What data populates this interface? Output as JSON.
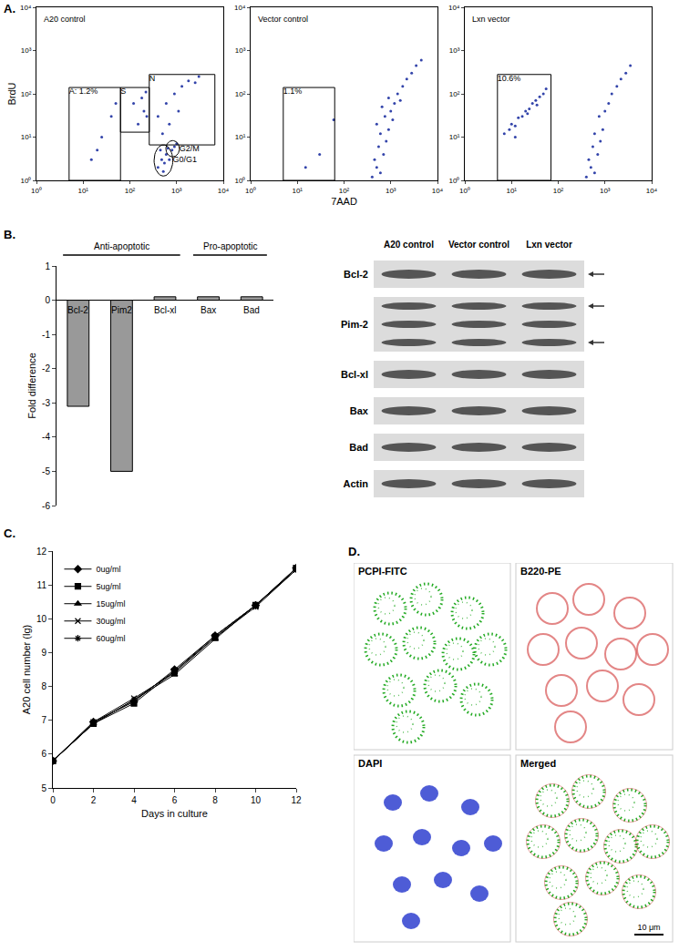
{
  "panel_labels": [
    "A.",
    "B.",
    "C.",
    "D."
  ],
  "chart_data": [
    {
      "type": "scatter",
      "title": "A20 control",
      "color": "#3344aa",
      "log": true,
      "xlim": [
        1,
        10000
      ],
      "ylim": [
        1,
        10000
      ],
      "xticks": [
        {
          "value": 1,
          "label": "10⁰"
        },
        {
          "value": 10,
          "label": "10¹"
        },
        {
          "value": 100,
          "label": "10²"
        },
        {
          "value": 1000,
          "label": "10³"
        },
        {
          "value": 10000,
          "label": "10⁴"
        }
      ],
      "yticks": [
        {
          "value": 1,
          "label": "10⁰"
        },
        {
          "value": 10,
          "label": "10¹"
        },
        {
          "value": 100,
          "label": "10²"
        },
        {
          "value": 1000,
          "label": "10³"
        },
        {
          "value": 10000,
          "label": "10⁴"
        }
      ],
      "ylabel": "BrdU",
      "x": [
        400,
        480,
        550,
        600,
        450,
        700,
        520,
        650,
        800,
        900,
        1000,
        150,
        200,
        180,
        230,
        120,
        220,
        400,
        600,
        900,
        1300,
        1800,
        2500,
        700,
        1100,
        500,
        3000,
        15,
        25,
        40,
        20,
        50
      ],
      "values": [
        2,
        3,
        2.5,
        4,
        5,
        3,
        1.6,
        5.5,
        5,
        6,
        7,
        20,
        40,
        80,
        30,
        60,
        110,
        30,
        60,
        100,
        150,
        200,
        180,
        20,
        40,
        12,
        250,
        3,
        10,
        30,
        5,
        60
      ],
      "gates": [
        {
          "label": "A: 1.2%",
          "shape": "rect",
          "x": [
            5,
            63
          ],
          "y": [
            1,
            140
          ]
        },
        {
          "label": "S",
          "shape": "rect",
          "x": [
            63,
            260
          ],
          "y": [
            13,
            140
          ]
        },
        {
          "label": "N",
          "shape": "rect",
          "x": [
            260,
            6600
          ],
          "y": [
            6.6,
            280
          ]
        },
        {
          "label": "G0/G1",
          "shape": "ellipse",
          "x": [
            330,
            830
          ],
          "y": [
            1.26,
            6.6
          ]
        },
        {
          "label": "G2/M",
          "shape": "ellipse",
          "x": [
            590,
            1150
          ],
          "y": [
            3.5,
            8.3
          ]
        }
      ]
    },
    {
      "type": "scatter",
      "title": "Vector control",
      "color": "#3344aa",
      "log": true,
      "xlim": [
        1,
        10000
      ],
      "ylim": [
        1,
        10000
      ],
      "xticks": [
        {
          "value": 1,
          "label": "10⁰"
        },
        {
          "value": 10,
          "label": "10¹"
        },
        {
          "value": 100,
          "label": "10²"
        },
        {
          "value": 1000,
          "label": "10³"
        },
        {
          "value": 10000,
          "label": "10⁴"
        }
      ],
      "yticks": [
        {
          "value": 1,
          "label": "10⁰"
        },
        {
          "value": 10,
          "label": "10¹"
        },
        {
          "value": 100,
          "label": "10²"
        },
        {
          "value": 1000,
          "label": "10³"
        },
        {
          "value": 10000,
          "label": "10⁴"
        }
      ],
      "xlabel": "7AAD",
      "x": [
        400,
        500,
        600,
        450,
        700,
        550,
        800,
        600,
        900,
        500,
        750,
        1000,
        650,
        1200,
        900,
        1400,
        1800,
        2200,
        2800,
        3500,
        4500,
        1100,
        1600,
        30,
        60,
        15
      ],
      "values": [
        1.2,
        2,
        1.5,
        3,
        4,
        6,
        8,
        12,
        15,
        20,
        30,
        40,
        50,
        60,
        80,
        100,
        150,
        220,
        300,
        450,
        600,
        25,
        70,
        4,
        25,
        2
      ],
      "gates": [
        {
          "label": "1.1%",
          "shape": "rect",
          "x": [
            5,
            63
          ],
          "y": [
            1,
            140
          ]
        }
      ]
    },
    {
      "type": "scatter",
      "title": "Lxn vector",
      "color": "#3344aa",
      "log": true,
      "xlim": [
        1,
        10000
      ],
      "ylim": [
        1,
        10000
      ],
      "xticks": [
        {
          "value": 1,
          "label": "10⁰"
        },
        {
          "value": 10,
          "label": "10¹"
        },
        {
          "value": 100,
          "label": "10²"
        },
        {
          "value": 1000,
          "label": "10³"
        },
        {
          "value": 10000,
          "label": "10⁴"
        }
      ],
      "yticks": [
        {
          "value": 1,
          "label": "10⁰"
        },
        {
          "value": 10,
          "label": "10¹"
        },
        {
          "value": 100,
          "label": "10²"
        },
        {
          "value": 1000,
          "label": "10³"
        },
        {
          "value": 10000,
          "label": "10⁴"
        }
      ],
      "x": [
        400,
        500,
        600,
        450,
        700,
        550,
        800,
        600,
        900,
        750,
        1000,
        1200,
        1400,
        1800,
        2200,
        2800,
        3500,
        7,
        9,
        10,
        12,
        14,
        17,
        20,
        24,
        28,
        33,
        40,
        48,
        55,
        12,
        22,
        35
      ],
      "values": [
        1.2,
        2,
        1.5,
        3,
        4,
        6,
        8,
        12,
        15,
        30,
        40,
        60,
        100,
        150,
        220,
        300,
        450,
        12,
        15,
        20,
        18,
        28,
        30,
        40,
        45,
        60,
        70,
        85,
        100,
        130,
        10,
        35,
        55
      ],
      "gates": [
        {
          "label": "10.6%",
          "shape": "rect",
          "x": [
            5,
            70
          ],
          "y": [
            1,
            280
          ]
        }
      ]
    },
    {
      "type": "bar",
      "categories": [
        "Bcl-2",
        "Pim2",
        "Bcl-xl",
        "Bax",
        "Bad"
      ],
      "values": [
        -3.1,
        -5,
        0.1,
        0.1,
        0.1
      ],
      "color": "#999999",
      "ylabel": "Fold difference",
      "ylim": [
        -6,
        1
      ],
      "yticks": [
        -6,
        -5,
        -4,
        -3,
        -2,
        -1,
        0,
        1
      ],
      "tick_labels": "y",
      "groups": [
        {
          "label": "Anti-apoptotic",
          "from": "Bcl-2",
          "to": "Bcl-xl"
        },
        {
          "label": "Pro-apoptotic",
          "from": "Bax",
          "to": "Bad"
        }
      ]
    },
    {
      "type": "line",
      "x": [
        0,
        2,
        4,
        6,
        8,
        10,
        12
      ],
      "xlabel": "Days in culture",
      "ylabel": "A20 cell number (lg)",
      "xlim": [
        0,
        12
      ],
      "xticks": [
        0,
        2,
        4,
        6,
        8,
        10,
        12
      ],
      "ylim": [
        5,
        12
      ],
      "yticks": [
        5,
        6,
        7,
        8,
        9,
        10,
        11,
        12
      ],
      "legend": "upper left",
      "series": [
        {
          "name": "0ug/ml",
          "color": "#000000",
          "marker": "diamond",
          "values": [
            5.8,
            6.95,
            7.55,
            8.5,
            9.5,
            10.4,
            11.5
          ]
        },
        {
          "name": "5ug/ml",
          "color": "#000000",
          "marker": "square",
          "values": [
            5.8,
            6.9,
            7.5,
            8.45,
            9.45,
            10.4,
            11.5
          ]
        },
        {
          "name": "15ug/ml",
          "color": "#000000",
          "marker": "triangle",
          "values": [
            5.8,
            6.9,
            7.6,
            8.35,
            9.4,
            10.4,
            11.45
          ]
        },
        {
          "name": "30ug/ml",
          "color": "#000000",
          "marker": "x",
          "values": [
            5.8,
            6.95,
            7.65,
            8.4,
            9.45,
            10.35,
            11.45
          ]
        },
        {
          "name": "60ug/ml",
          "color": "#000000",
          "marker": "star",
          "values": [
            5.8,
            6.9,
            7.6,
            8.45,
            9.5,
            10.4,
            11.45
          ]
        }
      ]
    }
  ],
  "blot": {
    "columns": [
      "A20 control",
      "Vector control",
      "Lxn vector"
    ],
    "rows": [
      {
        "label": "Bcl-2",
        "bands": 1,
        "arrows": [
          0
        ]
      },
      {
        "label": "Pim-2",
        "bands": 3,
        "arrows": [
          0,
          2
        ]
      },
      {
        "label": "Bcl-xl",
        "bands": 1
      },
      {
        "label": "Bax",
        "bands": 1
      },
      {
        "label": "Bad",
        "bands": 1
      },
      {
        "label": "Actin",
        "bands": 1
      }
    ]
  },
  "micrographs": {
    "images": [
      {
        "label": "PCPI-FITC",
        "color": "#22aa22"
      },
      {
        "label": "B220-PE",
        "color": "#cc2222"
      },
      {
        "label": "DAPI",
        "color": "#2233cc"
      },
      {
        "label": "Merged",
        "colors": [
          "#22aa22",
          "#cc2222"
        ]
      }
    ],
    "scale_bar": "10 μm"
  }
}
